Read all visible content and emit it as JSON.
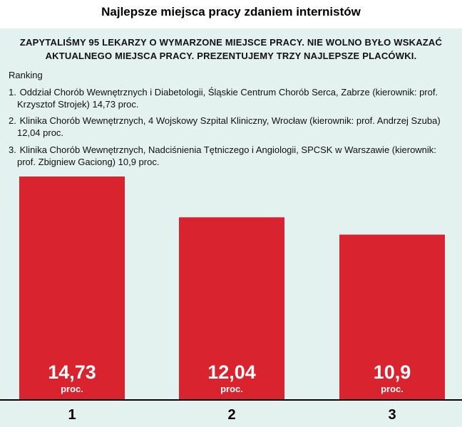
{
  "title": "Najlepsze miejsca pracy zdaniem internistów",
  "subtitle_line1": "ZAPYTALIŚMY 95 LEKARZY O WYMARZONE MIEJSCE PRACY. NIE WOLNO BYŁO WSKAZAĆ",
  "subtitle_line2": "AKTUALNEGO MIEJSCA PRACY. PREZENTUJEMY TRZY NAJLEPSZE PLACÓWKI.",
  "ranking": {
    "heading": "Ranking",
    "items": [
      {
        "num": "1.",
        "line1": "Oddział Chorób Wewnętrznych i Diabetologii, Śląskie Centrum Chorób Serca, Zabrze (kierownik: prof.",
        "line2": "Krzysztof Strojek)  14,73 proc."
      },
      {
        "num": "2.",
        "line1": "Klinika Chorób Wewnętrznych, 4 Wojskowy Szpital Kliniczny, Wrocław (kierownik: prof. Andrzej Szuba)",
        "line2": "12,04 proc."
      },
      {
        "num": "3.",
        "line1": "Klinika Chorób Wewnętrznych, Nadciśnienia Tętniczego i Angiologii, SPCSK w Warszawie (kierownik:",
        "line2": "prof. Zbigniew Gaciong) 10,9 proc."
      }
    ]
  },
  "colors": {
    "bar": "#d9232e",
    "panel": "#e3f1ef",
    "bar_label": "#ffffff"
  },
  "chart_data": {
    "type": "bar",
    "categories": [
      "1",
      "2",
      "3"
    ],
    "values": [
      14.73,
      12.04,
      10.9
    ],
    "value_labels": [
      "14,73",
      "12,04",
      "10,9"
    ],
    "unit_label": "proc.",
    "ylim": [
      0,
      14.73
    ],
    "grid": false
  }
}
